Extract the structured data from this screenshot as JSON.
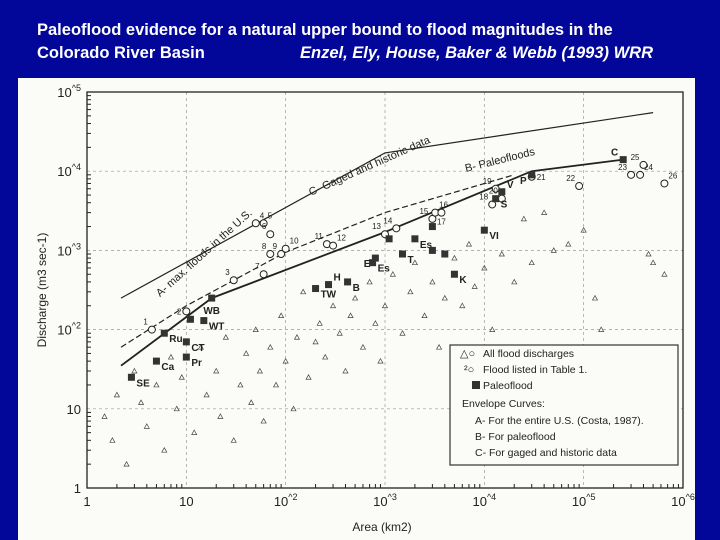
{
  "slide": {
    "title_line1": "Paleoflood evidence for a natural upper bound to flood magnitudes in the",
    "title_line2": "Colorado River Basin",
    "citation": "Enzel, Ely, House, Baker & Webb (1993) WRR",
    "background_color": "#02079a"
  },
  "chart_data": {
    "type": "scatter",
    "xlabel": "Area (km2)",
    "ylabel": "Discharge (m3 sec-1)",
    "x_scale": "log",
    "y_scale": "log",
    "xlim": [
      1,
      1000000
    ],
    "ylim": [
      1,
      100000
    ],
    "x_ticks": [
      "1",
      "10",
      "10^2",
      "10^3",
      "10^4",
      "10^5",
      "10^6"
    ],
    "y_ticks": [
      "1",
      "10",
      "10^2",
      "10^3",
      "10^4",
      "10^5"
    ],
    "grid": true,
    "legend_placement": "bottom-right",
    "legend": {
      "items": [
        "All flood discharges",
        "Flood listed in Table 1.",
        "Paleoflood"
      ],
      "envelope_title": "Envelope Curves:",
      "envelope_items": [
        "A- For the entire U.S. (Costa, 1987).",
        "B- For paleoflood",
        "C- For gaged and historic data"
      ]
    },
    "curves": [
      {
        "name": "A- max. floods in the U.S.",
        "points": [
          [
            2.2,
            250
          ],
          [
            1000,
            17000
          ],
          [
            500000,
            55000
          ]
        ],
        "style": "solid"
      },
      {
        "name": "C- Gaged and historic data",
        "points": [
          [
            2.2,
            60
          ],
          [
            10,
            200
          ],
          [
            100,
            950
          ],
          [
            1000,
            3000
          ],
          [
            20000,
            9000
          ]
        ],
        "style": "dashed"
      },
      {
        "name": "B- Paleofloods",
        "points": [
          [
            2.2,
            35
          ],
          [
            18,
            250
          ],
          [
            1000,
            1700
          ],
          [
            30000,
            10000
          ],
          [
            250000,
            14000
          ]
        ],
        "style": "solid-bold"
      }
    ],
    "paleofloods": [
      {
        "label": "SE",
        "x": 2.8,
        "y": 25
      },
      {
        "label": "Ca",
        "x": 5,
        "y": 40
      },
      {
        "label": "Ru",
        "x": 6,
        "y": 90
      },
      {
        "label": "CT",
        "x": 10,
        "y": 70
      },
      {
        "label": "Pr",
        "x": 10,
        "y": 45
      },
      {
        "label": "",
        "x": 11,
        "y": 135
      },
      {
        "label": "WT",
        "x": 15,
        "y": 130
      },
      {
        "label": "WB",
        "x": 18,
        "y": 250
      },
      {
        "label": "TW",
        "x": 200,
        "y": 330
      },
      {
        "label": "H",
        "x": 270,
        "y": 370
      },
      {
        "label": "B",
        "x": 420,
        "y": 400
      },
      {
        "label": "Es",
        "x": 750,
        "y": 700
      },
      {
        "label": "E",
        "x": 800,
        "y": 800
      },
      {
        "label": "",
        "x": 1100,
        "y": 1400
      },
      {
        "label": "T",
        "x": 1500,
        "y": 900
      },
      {
        "label": "Es",
        "x": 2000,
        "y": 1400
      },
      {
        "label": "",
        "x": 3000,
        "y": 1000
      },
      {
        "label": "",
        "x": 3000,
        "y": 2000
      },
      {
        "label": "",
        "x": 4000,
        "y": 900
      },
      {
        "label": "K",
        "x": 5000,
        "y": 500
      },
      {
        "label": "VI",
        "x": 10000,
        "y": 1800
      },
      {
        "label": "S",
        "x": 13000,
        "y": 4500
      },
      {
        "label": "V",
        "x": 15000,
        "y": 5500
      },
      {
        "label": "P",
        "x": 30000,
        "y": 9000
      },
      {
        "label": "C",
        "x": 250000,
        "y": 14000
      }
    ],
    "table1_floods": [
      {
        "label": "1",
        "x": 4.5,
        "y": 100
      },
      {
        "label": "2",
        "x": 10,
        "y": 170
      },
      {
        "label": "3",
        "x": 30,
        "y": 420
      },
      {
        "label": "4",
        "x": 50,
        "y": 2200
      },
      {
        "label": "5",
        "x": 60,
        "y": 2200
      },
      {
        "label": "6",
        "x": 70,
        "y": 1600
      },
      {
        "label": "7",
        "x": 60,
        "y": 500
      },
      {
        "label": "8",
        "x": 70,
        "y": 900
      },
      {
        "label": "9",
        "x": 90,
        "y": 900
      },
      {
        "label": "10",
        "x": 100,
        "y": 1050
      },
      {
        "label": "11",
        "x": 260,
        "y": 1200
      },
      {
        "label": "12",
        "x": 300,
        "y": 1150
      },
      {
        "label": "13",
        "x": 1000,
        "y": 1600
      },
      {
        "label": "14",
        "x": 1300,
        "y": 1900
      },
      {
        "label": "15",
        "x": 3000,
        "y": 2500
      },
      {
        "label": "16",
        "x": 3200,
        "y": 3000
      },
      {
        "label": "17",
        "x": 3700,
        "y": 3000
      },
      {
        "label": "18",
        "x": 12000,
        "y": 3800
      },
      {
        "label": "19",
        "x": 13000,
        "y": 6000
      },
      {
        "label": "20",
        "x": 15000,
        "y": 4500
      },
      {
        "label": "21",
        "x": 30000,
        "y": 8500
      },
      {
        "label": "22",
        "x": 90000,
        "y": 6500
      },
      {
        "label": "23",
        "x": 300000,
        "y": 9000
      },
      {
        "label": "24",
        "x": 370000,
        "y": 9000
      },
      {
        "label": "25",
        "x": 400000,
        "y": 12000
      },
      {
        "label": "26",
        "x": 650000,
        "y": 7000
      }
    ],
    "all_floods_sample": [
      [
        1.5,
        8
      ],
      [
        1.8,
        4
      ],
      [
        2,
        15
      ],
      [
        2.5,
        2
      ],
      [
        3,
        30
      ],
      [
        3.5,
        12
      ],
      [
        4,
        6
      ],
      [
        5,
        20
      ],
      [
        6,
        3
      ],
      [
        7,
        45
      ],
      [
        8,
        10
      ],
      [
        9,
        25
      ],
      [
        12,
        5
      ],
      [
        14,
        60
      ],
      [
        16,
        15
      ],
      [
        20,
        30
      ],
      [
        22,
        8
      ],
      [
        25,
        80
      ],
      [
        30,
        4
      ],
      [
        35,
        20
      ],
      [
        40,
        50
      ],
      [
        45,
        12
      ],
      [
        50,
        100
      ],
      [
        55,
        30
      ],
      [
        60,
        7
      ],
      [
        70,
        60
      ],
      [
        80,
        20
      ],
      [
        90,
        150
      ],
      [
        100,
        40
      ],
      [
        120,
        10
      ],
      [
        130,
        80
      ],
      [
        150,
        300
      ],
      [
        170,
        25
      ],
      [
        200,
        70
      ],
      [
        220,
        120
      ],
      [
        250,
        45
      ],
      [
        300,
        200
      ],
      [
        350,
        90
      ],
      [
        400,
        30
      ],
      [
        450,
        150
      ],
      [
        500,
        250
      ],
      [
        600,
        60
      ],
      [
        700,
        400
      ],
      [
        800,
        120
      ],
      [
        900,
        40
      ],
      [
        1000,
        200
      ],
      [
        1200,
        500
      ],
      [
        1500,
        90
      ],
      [
        1800,
        300
      ],
      [
        2000,
        700
      ],
      [
        2500,
        150
      ],
      [
        3000,
        400
      ],
      [
        3500,
        60
      ],
      [
        4000,
        250
      ],
      [
        5000,
        800
      ],
      [
        6000,
        200
      ],
      [
        7000,
        1200
      ],
      [
        8000,
        350
      ],
      [
        10000,
        600
      ],
      [
        12000,
        100
      ],
      [
        15000,
        900
      ],
      [
        20000,
        400
      ],
      [
        25000,
        2500
      ],
      [
        30000,
        700
      ],
      [
        40000,
        3000
      ],
      [
        50000,
        1000
      ],
      [
        70000,
        1200
      ],
      [
        100000,
        1800
      ],
      [
        130000,
        250
      ],
      [
        150000,
        100
      ],
      [
        450000,
        900
      ],
      [
        500000,
        700
      ],
      [
        650000,
        500
      ]
    ],
    "annotations": [
      "A- max. floods in the U.S.",
      "C- Gaged and historic data",
      "B- Paleofloods"
    ]
  }
}
